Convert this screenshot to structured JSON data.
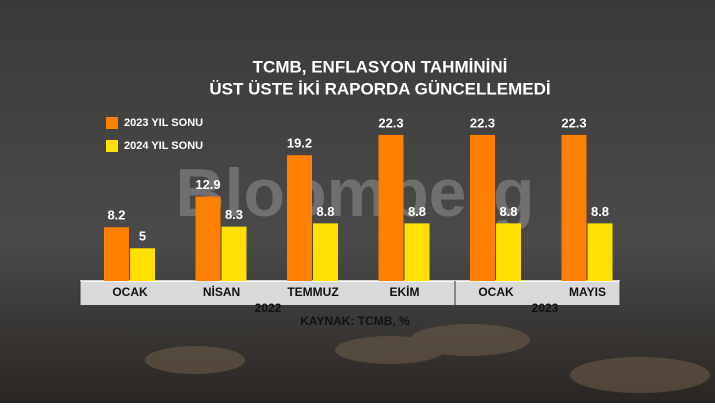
{
  "chart_data": {
    "type": "bar",
    "title": "TCMB, ENFLASYON TAHMİNİNİ",
    "subtitle": "ÜST ÜSTE İKİ RAPORDA GÜNCELLEMEDİ",
    "watermark": "Bloomberg",
    "categories": [
      "OCAK",
      "NİSAN",
      "TEMMUZ",
      "EKİM",
      "OCAK",
      "MAYIS"
    ],
    "group_labels": [
      "2022",
      "2023"
    ],
    "source": "KAYNAK: TCMB, %",
    "series": [
      {
        "name": "2023 YIL SONU",
        "color": "#ff7f00",
        "values": [
          8.2,
          12.9,
          19.2,
          22.3,
          22.3,
          22.3
        ]
      },
      {
        "name": "2024 YIL SONU",
        "color": "#ffe000",
        "values": [
          5,
          8.3,
          8.8,
          8.8,
          8.8,
          8.8
        ]
      }
    ]
  }
}
